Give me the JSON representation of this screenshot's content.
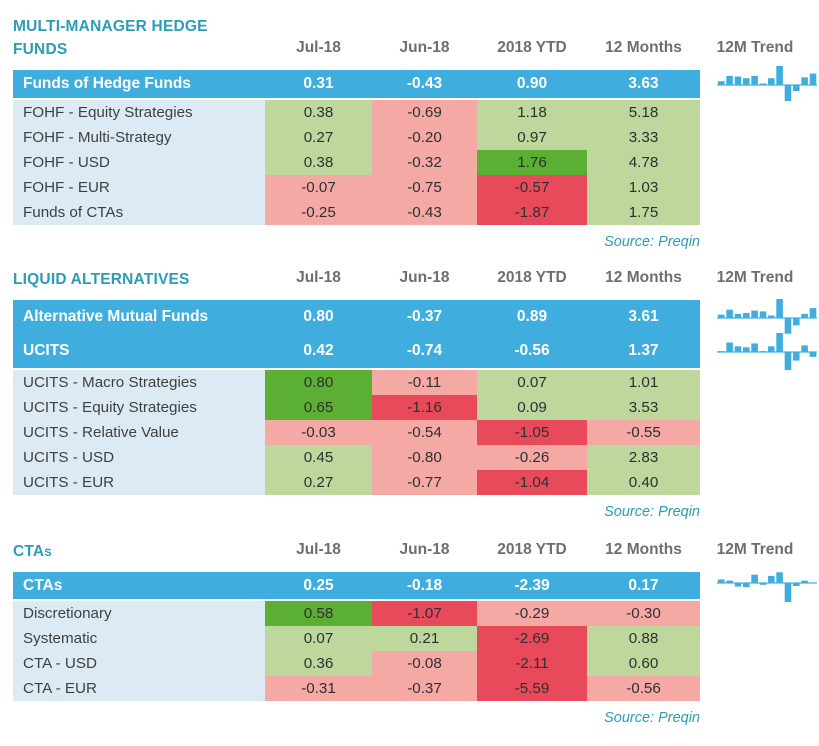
{
  "palette": {
    "summary_row_blue": "#3FAEDE",
    "light_green": "#BDD79C",
    "dark_green": "#5BB033",
    "light_red": "#F5A9A5",
    "dark_red": "#E84A5B",
    "label_column_bg": "#DCEBF3",
    "title_teal": "#2B9DB5",
    "column_header_gray": "#6D6E71",
    "sparkline_blue": "#3FAEDE"
  },
  "chart_data": [
    {
      "type": "table",
      "title": "MULTI-MANAGER HEDGE FUNDS",
      "title_small_caps": false,
      "columns": [
        "Jul-18",
        "Jun-18",
        "2018 YTD",
        "12 Months",
        "12M Trend"
      ],
      "summary_rows": [
        {
          "label": "Funds of Hedge Funds",
          "values": [
            "0.31",
            "-0.43",
            "0.90",
            "3.63"
          ],
          "spark_12m_trend": {
            "type": "bar",
            "values": [
              0.25,
              0.6,
              0.55,
              0.45,
              0.6,
              0.1,
              0.45,
              1.25,
              -1.05,
              -0.4,
              0.5,
              0.75
            ]
          }
        }
      ],
      "rows": [
        {
          "label": "FOHF - Equity Strategies",
          "values": [
            "0.38",
            "-0.69",
            "1.18",
            "5.18"
          ],
          "colors": [
            "lg",
            "lr",
            "lg",
            "lg"
          ]
        },
        {
          "label": "FOHF - Multi-Strategy",
          "values": [
            "0.27",
            "-0.20",
            "0.97",
            "3.33"
          ],
          "colors": [
            "lg",
            "lr",
            "lg",
            "lg"
          ]
        },
        {
          "label": "FOHF - USD",
          "values": [
            "0.38",
            "-0.32",
            "1.76",
            "4.78"
          ],
          "colors": [
            "lg",
            "lr",
            "dg",
            "lg"
          ]
        },
        {
          "label": "FOHF - EUR",
          "values": [
            "-0.07",
            "-0.75",
            "-0.57",
            "1.03"
          ],
          "colors": [
            "lr",
            "lr",
            "dr",
            "lg"
          ]
        },
        {
          "label": "Funds of CTAs",
          "values": [
            "-0.25",
            "-0.43",
            "-1.87",
            "1.75"
          ],
          "colors": [
            "lr",
            "lr",
            "dr",
            "lg"
          ]
        }
      ],
      "source": "Source: Preqin"
    },
    {
      "type": "table",
      "title": "LIQUID ALTERNATIVES",
      "title_small_caps": false,
      "columns": [
        "Jul-18",
        "Jun-18",
        "2018 YTD",
        "12 Months",
        "12M Trend"
      ],
      "summary_rows": [
        {
          "label": "Alternative Mutual Funds",
          "values": [
            "0.80",
            "-0.37",
            "0.89",
            "3.61"
          ],
          "spark_12m_trend": {
            "type": "bar",
            "values": [
              0.2,
              0.5,
              0.25,
              0.3,
              0.45,
              0.4,
              0.15,
              1.15,
              -0.95,
              -0.45,
              0.25,
              0.6
            ]
          }
        },
        {
          "label": "UCITS",
          "values": [
            "0.42",
            "-0.74",
            "-0.56",
            "1.37"
          ],
          "spark_12m_trend": {
            "type": "bar",
            "values": [
              0.05,
              0.5,
              0.3,
              0.25,
              0.45,
              0.05,
              0.3,
              1.0,
              -0.95,
              -0.45,
              0.35,
              -0.25
            ]
          }
        }
      ],
      "rows": [
        {
          "label": "UCITS - Macro Strategies",
          "values": [
            "0.80",
            "-0.11",
            "0.07",
            "1.01"
          ],
          "colors": [
            "dg",
            "lr",
            "lg",
            "lg"
          ]
        },
        {
          "label": "UCITS - Equity Strategies",
          "values": [
            "0.65",
            "-1.16",
            "0.09",
            "3.53"
          ],
          "colors": [
            "dg",
            "dr",
            "lg",
            "lg"
          ]
        },
        {
          "label": "UCITS - Relative Value",
          "values": [
            "-0.03",
            "-0.54",
            "-1.05",
            "-0.55"
          ],
          "colors": [
            "lr",
            "lr",
            "dr",
            "lr"
          ]
        },
        {
          "label": "UCITS - USD",
          "values": [
            "0.45",
            "-0.80",
            "-0.26",
            "2.83"
          ],
          "colors": [
            "lg",
            "lr",
            "lr",
            "lg"
          ]
        },
        {
          "label": "UCITS - EUR",
          "values": [
            "0.27",
            "-0.77",
            "-1.04",
            "0.40"
          ],
          "colors": [
            "lg",
            "lr",
            "dr",
            "lg"
          ]
        }
      ],
      "source": "Source: Preqin"
    },
    {
      "type": "table",
      "title": "CTAs",
      "title_small_caps": true,
      "columns": [
        "Jul-18",
        "Jun-18",
        "2018 YTD",
        "12 Months",
        "12M Trend"
      ],
      "summary_rows": [
        {
          "label": "CTAs",
          "values": [
            "0.25",
            "-0.18",
            "-2.39",
            "0.17"
          ],
          "spark_12m_trend": {
            "type": "bar",
            "values": [
              0.3,
              0.2,
              -0.3,
              -0.35,
              0.7,
              -0.15,
              0.6,
              0.9,
              -1.6,
              -0.25,
              0.2,
              0.05
            ]
          }
        }
      ],
      "rows": [
        {
          "label": "Discretionary",
          "values": [
            "0.58",
            "-1.07",
            "-0.29",
            "-0.30"
          ],
          "colors": [
            "dg",
            "dr",
            "lr",
            "lr"
          ]
        },
        {
          "label": "Systematic",
          "values": [
            "0.07",
            "0.21",
            "-2.69",
            "0.88"
          ],
          "colors": [
            "lg",
            "lg",
            "dr",
            "lg"
          ]
        },
        {
          "label": "CTA - USD",
          "values": [
            "0.36",
            "-0.08",
            "-2.11",
            "0.60"
          ],
          "colors": [
            "lg",
            "lr",
            "dr",
            "lg"
          ]
        },
        {
          "label": "CTA - EUR",
          "values": [
            "-0.31",
            "-0.37",
            "-5.59",
            "-0.56"
          ],
          "colors": [
            "lr",
            "lr",
            "dr",
            "lr"
          ]
        }
      ],
      "source": "Source: Preqin"
    }
  ]
}
